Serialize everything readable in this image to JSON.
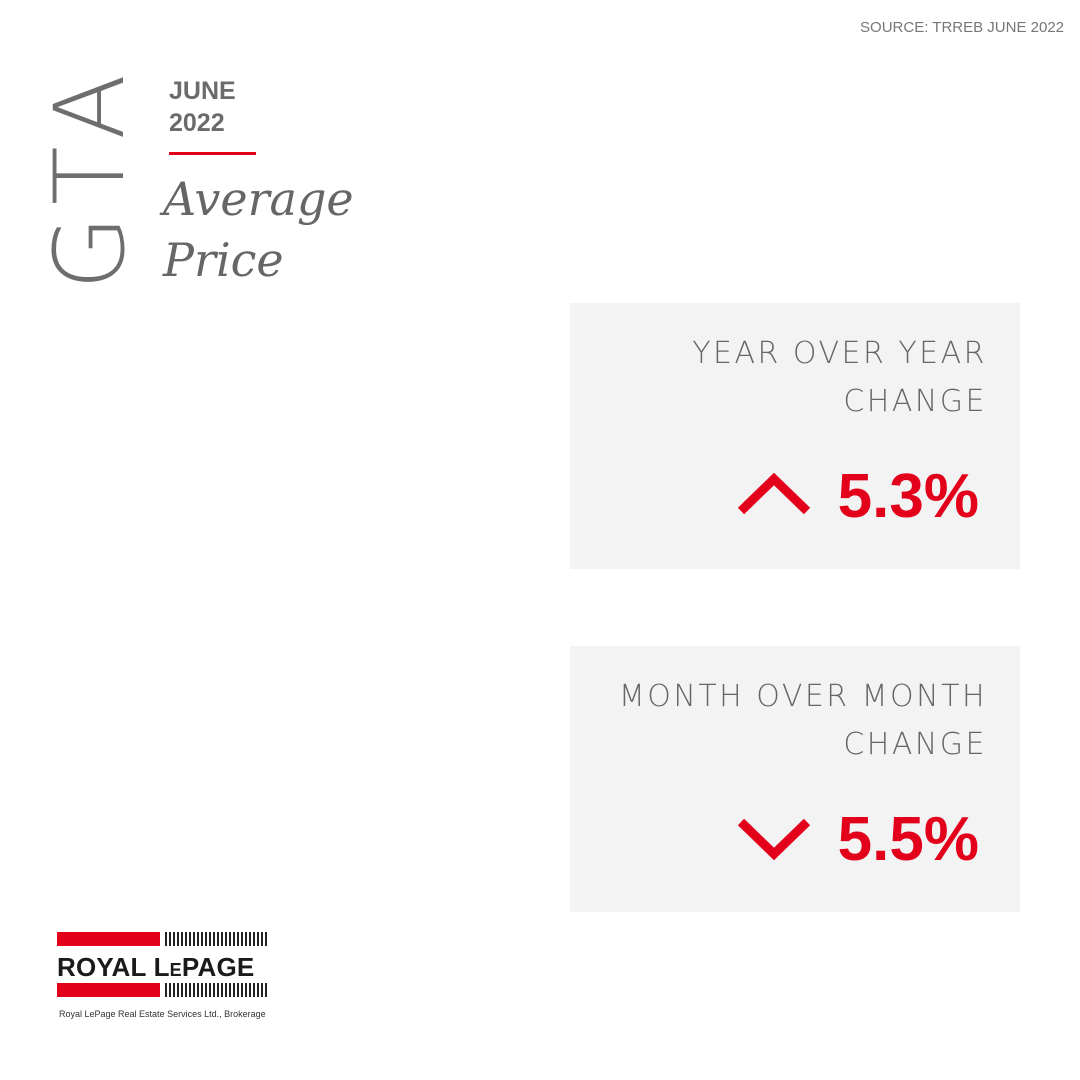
{
  "header": {
    "source": "SOURCE:  TRREB JUNE 2022",
    "region": "GTA",
    "month": "JUNE",
    "year": "2022",
    "title_line1": "Average",
    "title_line2": "Price"
  },
  "cards": [
    {
      "label_line1": "YEAR OVER YEAR",
      "label_line2": "CHANGE",
      "value": "5.3%"
    },
    {
      "label_line1": "MONTH OVER MONTH",
      "label_line2": "CHANGE",
      "value": "5.5%"
    }
  ],
  "logo": {
    "name": "ROYAL LePAGE",
    "caption": "Royal LePage Real Estate Services Ltd., Brokerage"
  }
}
